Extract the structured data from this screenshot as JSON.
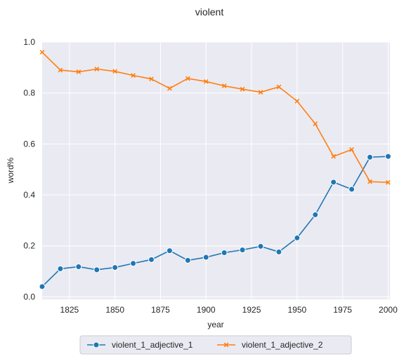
{
  "chart_data": {
    "type": "line",
    "title": "violent",
    "xlabel": "year",
    "ylabel": "word%",
    "xlim": [
      1810,
      2001
    ],
    "ylim": [
      -0.01,
      1.0
    ],
    "xticks": [
      1825,
      1850,
      1875,
      1900,
      1925,
      1950,
      1975,
      2000
    ],
    "yticks": [
      0.0,
      0.2,
      0.4,
      0.6,
      0.8,
      1.0
    ],
    "xtick_labels": [
      "1825",
      "1850",
      "1875",
      "1900",
      "1925",
      "1950",
      "1975",
      "2000"
    ],
    "ytick_labels": [
      "0.0",
      "0.2",
      "0.4",
      "0.6",
      "0.8",
      "1.0"
    ],
    "grid": true,
    "legend_position": "bottom-center",
    "x": [
      1810,
      1820,
      1830,
      1840,
      1850,
      1860,
      1870,
      1880,
      1890,
      1900,
      1910,
      1920,
      1930,
      1940,
      1950,
      1960,
      1970,
      1980,
      1990,
      2000
    ],
    "series": [
      {
        "name": "violent_1_adjective_1",
        "color": "#1f77b4",
        "marker": "circle",
        "values": [
          0.04,
          0.11,
          0.118,
          0.106,
          0.115,
          0.131,
          0.146,
          0.181,
          0.143,
          0.155,
          0.173,
          0.184,
          0.198,
          0.176,
          0.231,
          0.322,
          0.45,
          0.422,
          0.548,
          0.551
        ]
      },
      {
        "name": "violent_1_adjective_2",
        "color": "#ff7f0e",
        "marker": "x",
        "values": [
          0.96,
          0.89,
          0.883,
          0.894,
          0.885,
          0.869,
          0.855,
          0.818,
          0.857,
          0.845,
          0.828,
          0.815,
          0.803,
          0.824,
          0.768,
          0.679,
          0.551,
          0.578,
          0.452,
          0.449
        ]
      }
    ]
  }
}
